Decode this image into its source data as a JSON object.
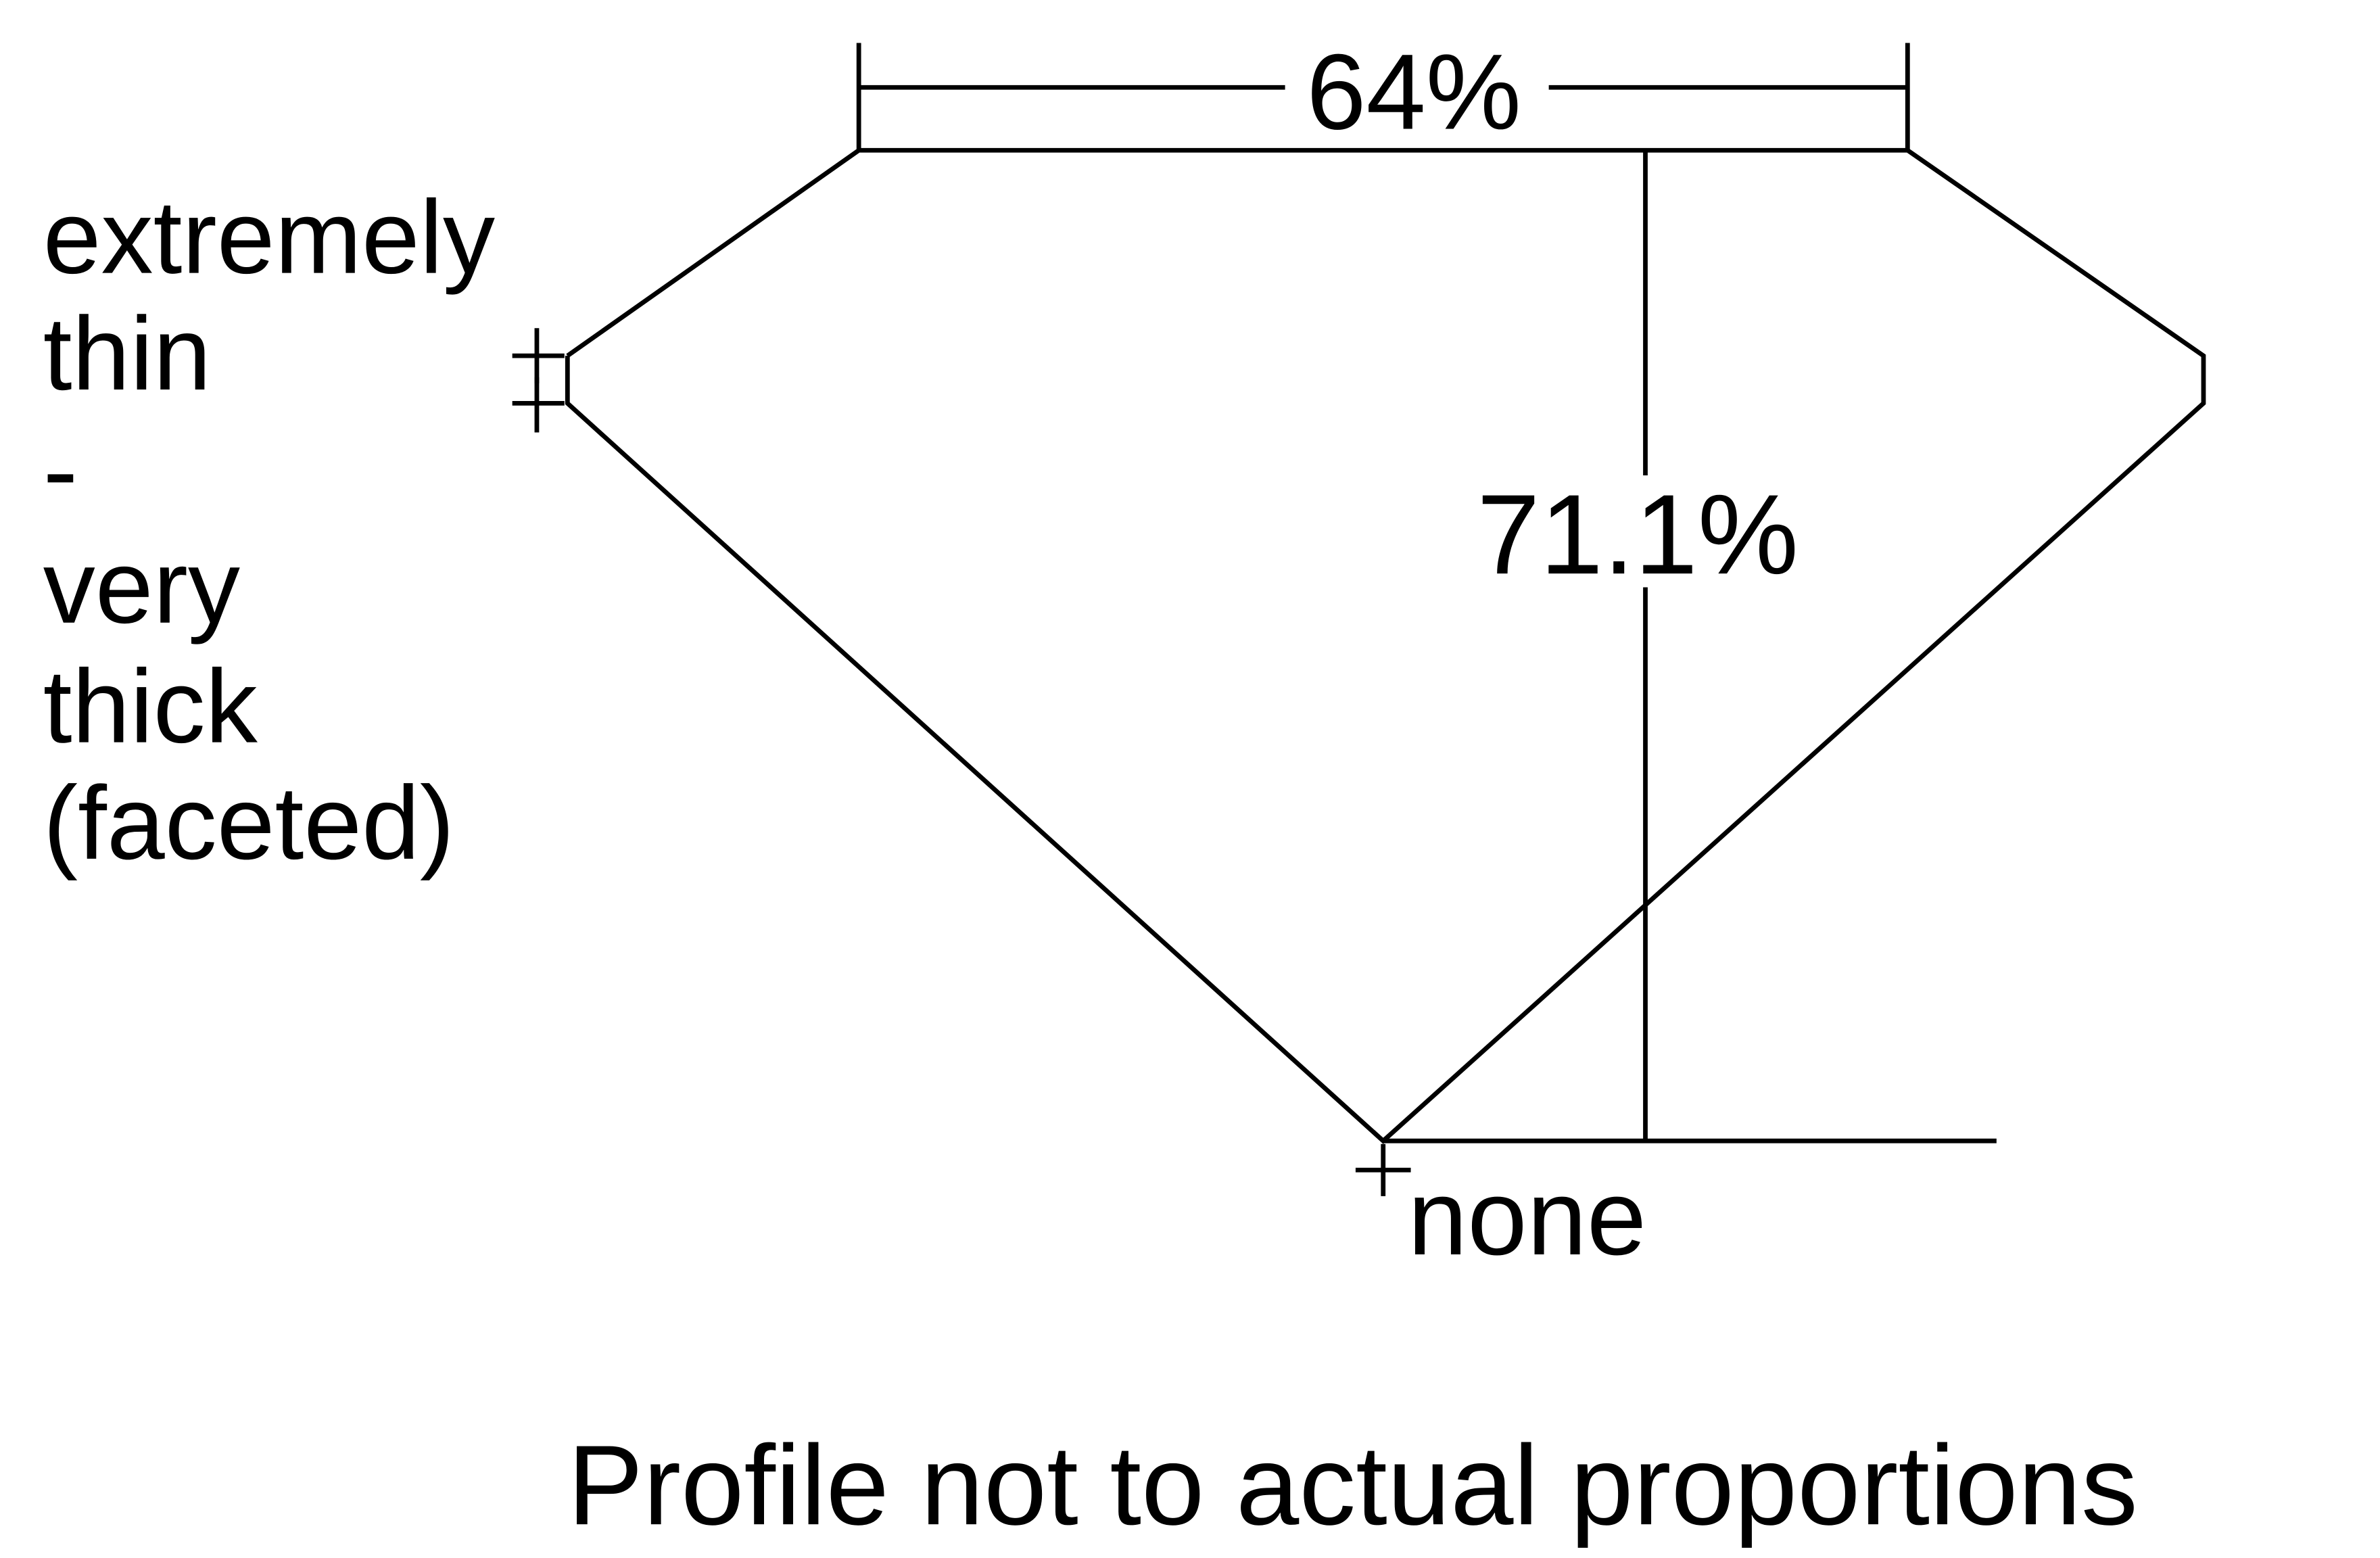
{
  "diagram": {
    "table_percent": "64%",
    "depth_percent": "71.1%",
    "girdle_label_lines": [
      "extremely",
      "thin",
      "-",
      "very",
      "thick",
      "(faceted)"
    ],
    "culet_label": "none",
    "footnote": "Profile not to actual proportions",
    "line_color": "#000000",
    "background_color": "#ffffff"
  }
}
